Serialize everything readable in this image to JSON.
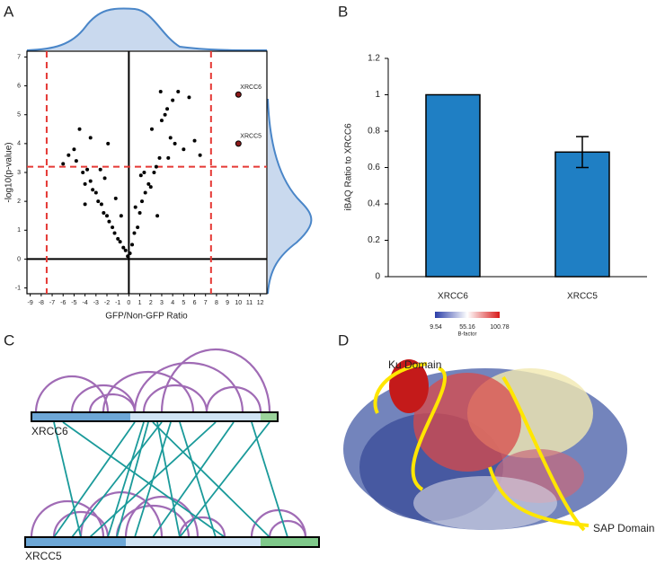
{
  "panels": {
    "labels": [
      "A",
      "B",
      "C",
      "D"
    ]
  },
  "chart_data": [
    {
      "type": "scatter",
      "xlabel": "GFP/Non-GFP Ratio",
      "ylabel": "-log10(p-value)",
      "x": [
        -6,
        -5.5,
        -5,
        -4.8,
        -4.5,
        -4.2,
        -4,
        -3.8,
        -3.5,
        -3.3,
        -3,
        -2.8,
        -2.5,
        -2.3,
        -2,
        -1.8,
        -1.5,
        -1.3,
        -1,
        -0.8,
        -0.5,
        -0.3,
        -0.1,
        -3.5,
        -2.6,
        -1.9,
        -1.2,
        -0.7,
        -4,
        -2.2,
        0.1,
        0.3,
        0.5,
        0.8,
        1,
        1.2,
        1.5,
        1.8,
        2,
        2.3,
        2.5,
        2.8,
        3,
        3.3,
        3.5,
        3.8,
        4,
        4.5,
        5,
        5.5,
        6,
        6.5,
        1.4,
        2.1,
        2.9,
        3.6,
        0.6,
        1.1,
        4.2,
        2.6
      ],
      "y": [
        3.3,
        3.6,
        3.8,
        3.4,
        4.5,
        3.0,
        2.6,
        3.1,
        2.7,
        2.4,
        2.3,
        2.0,
        1.9,
        1.6,
        1.5,
        1.3,
        1.1,
        0.9,
        0.7,
        0.6,
        0.4,
        0.3,
        0.1,
        4.2,
        3.1,
        4.0,
        2.1,
        1.5,
        1.9,
        2.8,
        0.2,
        0.5,
        0.9,
        1.1,
        1.6,
        2.0,
        2.3,
        2.6,
        2.5,
        3.0,
        3.2,
        3.5,
        4.8,
        5.0,
        5.2,
        4.2,
        5.5,
        5.8,
        3.8,
        5.6,
        4.1,
        3.6,
        3.0,
        4.5,
        5.8,
        3.5,
        1.8,
        2.9,
        4.0,
        1.5
      ],
      "color": "#000000",
      "highlight": {
        "x": [
          10,
          10
        ],
        "y": [
          5.7,
          4.0
        ],
        "labels": [
          "XRCC6",
          "XRCC5"
        ],
        "color": "#8b1a1a"
      },
      "reference_lines": {
        "x": [
          -7.5,
          7.5
        ],
        "y": [
          3.2
        ],
        "color": "#e53935"
      },
      "xlim": [
        -9.3,
        12.6
      ],
      "ylim": [
        -1.2,
        7.2
      ],
      "xticks": [
        -9,
        -8,
        -7,
        -6,
        -5,
        -4,
        -3,
        -2,
        -1,
        0,
        1,
        2,
        3,
        4,
        5,
        6,
        7,
        8,
        9,
        10,
        11,
        12
      ],
      "yticks": [
        -1,
        0,
        1,
        2,
        3,
        4,
        5,
        6,
        7
      ]
    },
    {
      "type": "bar",
      "ylabel": "iBAQ Ratio to XRCC6",
      "categories": [
        "XRCC6",
        "XRCC5"
      ],
      "values": [
        1,
        0.685
      ],
      "errors": [
        0,
        0.085
      ],
      "color": "#1f7fc4",
      "ylim": [
        0,
        1.2
      ],
      "yticks": [
        0,
        0.2,
        0.4,
        0.6,
        0.8,
        1,
        1.2
      ]
    }
  ],
  "diagram_c": {
    "labels": [
      "XRCC6",
      "XRCC5"
    ]
  },
  "structure_d": {
    "labels": [
      "Ku Domain",
      "SAP Domain"
    ],
    "colorbar_ticks": [
      "9.54",
      "55.16",
      "100.78"
    ],
    "colorbar_label": "B-factor"
  }
}
